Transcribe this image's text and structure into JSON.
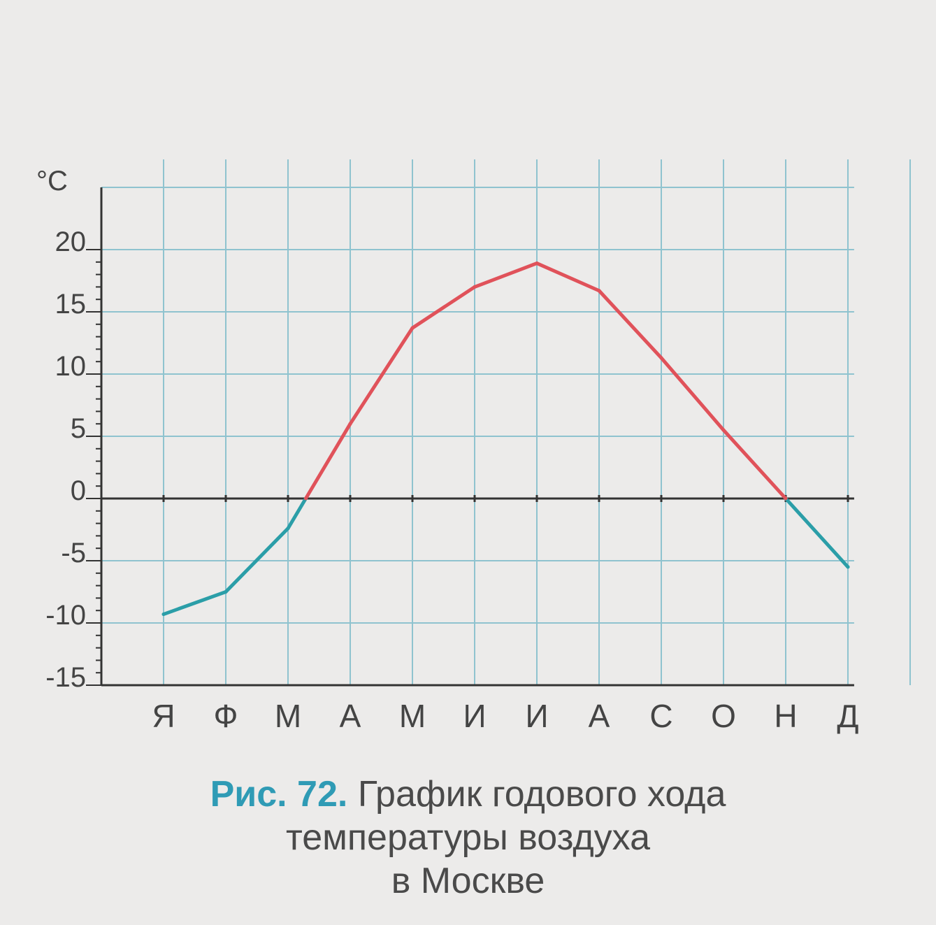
{
  "chart_data": {
    "type": "line",
    "ylabel": "°C",
    "ylim": [
      -15,
      25
    ],
    "yticks": [
      20,
      15,
      10,
      5,
      0,
      -5,
      -10,
      -15
    ],
    "categories": [
      "Я",
      "Ф",
      "М",
      "А",
      "М",
      "И",
      "И",
      "А",
      "С",
      "О",
      "Н",
      "Д"
    ],
    "values": [
      -9.3,
      -7.5,
      -2.4,
      6,
      13.7,
      17,
      18.9,
      16.7,
      11.3,
      5.5,
      0,
      -5.5
    ],
    "grid": true,
    "colors": {
      "positive": "#e0525a",
      "negative": "#2b9ea8",
      "grid": "#8fc3cf",
      "axis": "#333333"
    }
  },
  "caption": {
    "figure_label": "Рис. 72.",
    "line1": "График годового хода",
    "line2": "температуры воздуха",
    "line3": "в Москве"
  }
}
